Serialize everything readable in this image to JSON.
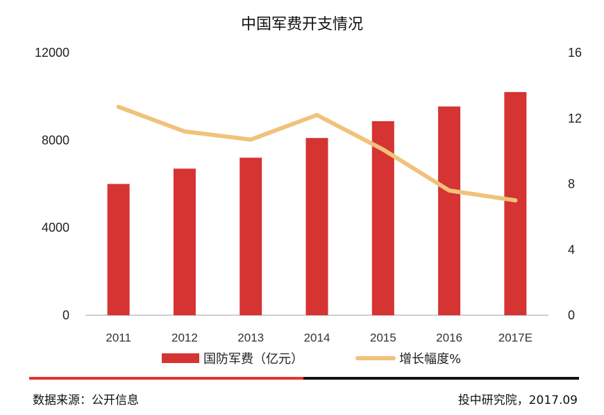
{
  "colors": {
    "bar": "#D63333",
    "line": "#F0C27B",
    "axis": "#BFBFBF",
    "divider_red": "#E8322C",
    "divider_black": "#111111"
  },
  "chart_data": {
    "type": "bar",
    "title": "中国军费开支情况",
    "categories": [
      "2011",
      "2012",
      "2013",
      "2014",
      "2015",
      "2016",
      "2017E"
    ],
    "series": [
      {
        "name": "国防军费（亿元）",
        "type": "bar",
        "axis": "left",
        "values": [
          6000,
          6700,
          7200,
          8100,
          8870,
          9540,
          10200
        ]
      },
      {
        "name": "增长幅度%",
        "type": "line",
        "axis": "right",
        "values": [
          12.7,
          11.2,
          10.7,
          12.2,
          10.1,
          7.6,
          7.0
        ]
      }
    ],
    "y_left": {
      "ticks": [
        "0",
        "4000",
        "8000",
        "12000"
      ],
      "range": [
        0,
        12000
      ]
    },
    "y_right": {
      "ticks": [
        "0",
        "4",
        "8",
        "12",
        "16"
      ],
      "range": [
        0,
        16
      ]
    },
    "legend": "bottom",
    "grid": false
  },
  "footer": {
    "source": "数据来源：公开信息",
    "credit": "投中研究院，2017.09"
  }
}
